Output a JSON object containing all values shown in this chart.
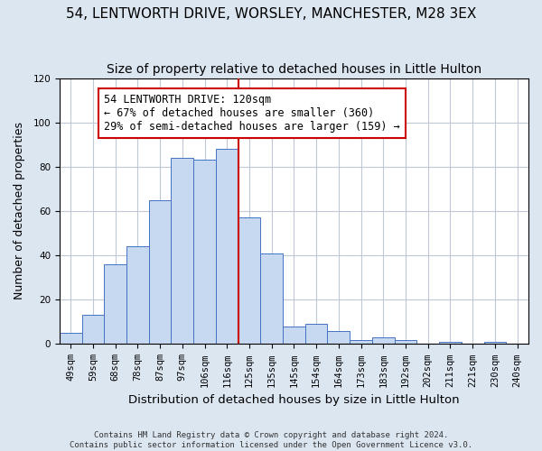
{
  "title_line1": "54, LENTWORTH DRIVE, WORSLEY, MANCHESTER, M28 3EX",
  "title_line2": "Size of property relative to detached houses in Little Hulton",
  "xlabel": "Distribution of detached houses by size in Little Hulton",
  "ylabel": "Number of detached properties",
  "footnote1": "Contains HM Land Registry data © Crown copyright and database right 2024.",
  "footnote2": "Contains public sector information licensed under the Open Government Licence v3.0.",
  "bin_labels": [
    "49sqm",
    "59sqm",
    "68sqm",
    "78sqm",
    "87sqm",
    "97sqm",
    "106sqm",
    "116sqm",
    "125sqm",
    "135sqm",
    "145sqm",
    "154sqm",
    "164sqm",
    "173sqm",
    "183sqm",
    "192sqm",
    "202sqm",
    "211sqm",
    "221sqm",
    "230sqm",
    "240sqm"
  ],
  "bar_heights": [
    5,
    13,
    36,
    44,
    65,
    84,
    83,
    88,
    57,
    41,
    8,
    9,
    6,
    2,
    3,
    2,
    0,
    1,
    0,
    1,
    0
  ],
  "bar_color": "#c6d9f0",
  "bar_edgecolor": "#4472c4",
  "background_color": "#dce6f1",
  "plot_bg_color": "#ffffff",
  "grid_color": "#c0c8d8",
  "vline_x": 7.5,
  "vline_color": "#cc0000",
  "annotation_text": "54 LENTWORTH DRIVE: 120sqm\n← 67% of detached houses are smaller (360)\n29% of semi-detached houses are larger (159) →",
  "annotation_box_edgecolor": "#cc0000",
  "ylim": [
    0,
    120
  ],
  "yticks": [
    0,
    20,
    40,
    60,
    80,
    100,
    120
  ],
  "title_fontsize": 11,
  "subtitle_fontsize": 10,
  "xlabel_fontsize": 9.5,
  "ylabel_fontsize": 9,
  "tick_fontsize": 7.5,
  "annotation_fontsize": 8.5
}
